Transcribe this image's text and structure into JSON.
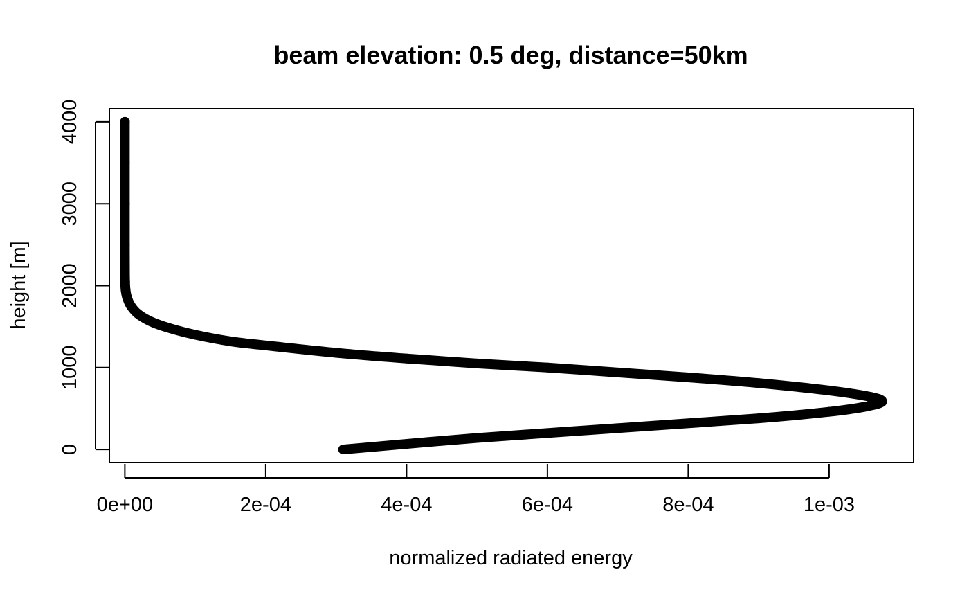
{
  "chart_data": {
    "type": "line",
    "title": "beam elevation: 0.5 deg, distance=50km",
    "xlabel": "normalized radiated energy",
    "ylabel": "height [m]",
    "xlim": [
      -2.2e-05,
      0.00112
    ],
    "ylim": [
      -160,
      4160
    ],
    "x_ticks": [
      {
        "value": 0,
        "label": "0e+00"
      },
      {
        "value": 0.0002,
        "label": "2e-04"
      },
      {
        "value": 0.0004,
        "label": "4e-04"
      },
      {
        "value": 0.0006,
        "label": "6e-04"
      },
      {
        "value": 0.0008,
        "label": "8e-04"
      },
      {
        "value": 0.001,
        "label": "1e-03"
      }
    ],
    "y_ticks": [
      {
        "value": 0,
        "label": "0"
      },
      {
        "value": 1000,
        "label": "1000"
      },
      {
        "value": 2000,
        "label": "2000"
      },
      {
        "value": 3000,
        "label": "3000"
      },
      {
        "value": 4000,
        "label": "4000"
      }
    ],
    "grid": false,
    "legend": "none",
    "series": [
      {
        "color": "#000000",
        "marker": "filled-circle",
        "points": [
          {
            "x": 0.00031,
            "y": 0
          },
          {
            "x": 0.0005,
            "y": 140
          },
          {
            "x": 0.0007,
            "y": 260
          },
          {
            "x": 0.0009,
            "y": 380
          },
          {
            "x": 0.001,
            "y": 460
          },
          {
            "x": 0.00105,
            "y": 520
          },
          {
            "x": 0.001075,
            "y": 580
          },
          {
            "x": 0.00106,
            "y": 640
          },
          {
            "x": 0.001,
            "y": 720
          },
          {
            "x": 0.0009,
            "y": 810
          },
          {
            "x": 0.0008,
            "y": 880
          },
          {
            "x": 0.0007,
            "y": 940
          },
          {
            "x": 0.0006,
            "y": 1000
          },
          {
            "x": 0.0005,
            "y": 1050
          },
          {
            "x": 0.0004,
            "y": 1110
          },
          {
            "x": 0.0003,
            "y": 1180
          },
          {
            "x": 0.0002,
            "y": 1270
          },
          {
            "x": 0.00015,
            "y": 1320
          },
          {
            "x": 0.0001,
            "y": 1400
          },
          {
            "x": 6e-05,
            "y": 1490
          },
          {
            "x": 3.5e-05,
            "y": 1570
          },
          {
            "x": 1.8e-05,
            "y": 1660
          },
          {
            "x": 8e-06,
            "y": 1760
          },
          {
            "x": 3e-06,
            "y": 1860
          },
          {
            "x": 1e-06,
            "y": 1950
          },
          {
            "x": 3e-07,
            "y": 2050
          },
          {
            "x": 1e-07,
            "y": 2200
          },
          {
            "x": 0.0,
            "y": 2500
          },
          {
            "x": 0.0,
            "y": 3000
          },
          {
            "x": 0.0,
            "y": 3500
          },
          {
            "x": 0.0,
            "y": 4000
          }
        ]
      }
    ]
  }
}
